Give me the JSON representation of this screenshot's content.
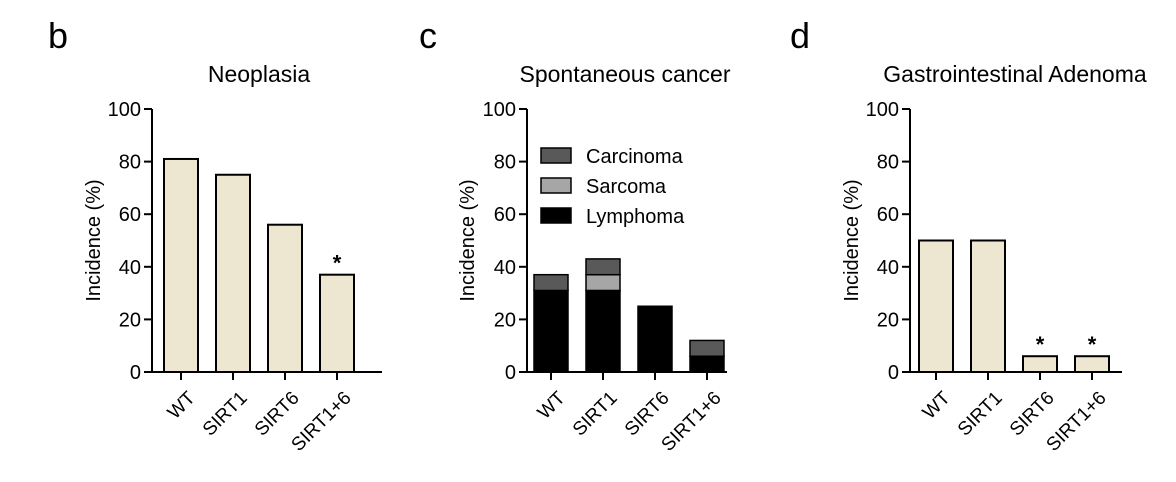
{
  "chart_data": [
    {
      "panel": "b",
      "type": "bar",
      "title": "Neoplasia",
      "ylabel": "Incidence (%)",
      "xlabel": "",
      "ylim": [
        0,
        100
      ],
      "yticks": [
        "0",
        "20",
        "40",
        "60",
        "80",
        "100"
      ],
      "categories": [
        "WT",
        "SIRT1",
        "SIRT6",
        "SIRT1+6"
      ],
      "values": [
        81,
        75,
        56,
        37
      ],
      "annotations": [
        "",
        "",
        "",
        "*"
      ],
      "color": "#ede6d0"
    },
    {
      "panel": "c",
      "type": "bar",
      "stacked": true,
      "title": "Spontaneous cancer",
      "ylabel": "Incidence (%)",
      "xlabel": "",
      "ylim": [
        0,
        100
      ],
      "yticks": [
        "0",
        "20",
        "40",
        "60",
        "80",
        "100"
      ],
      "categories": [
        "WT",
        "SIRT1",
        "SIRT6",
        "SIRT1+6"
      ],
      "series": [
        {
          "name": "Lymphoma",
          "values": [
            31,
            31,
            25,
            6
          ],
          "color": "#000000"
        },
        {
          "name": "Sarcoma",
          "values": [
            0,
            6,
            0,
            0
          ],
          "color": "#a6a6a6"
        },
        {
          "name": "Carcinoma",
          "values": [
            6,
            6,
            0,
            6
          ],
          "color": "#595959"
        }
      ],
      "legend_order": [
        "Carcinoma",
        "Sarcoma",
        "Lymphoma"
      ],
      "legend_position": "top-left"
    },
    {
      "panel": "d",
      "type": "bar",
      "title": "Gastrointestinal Adenoma",
      "ylabel": "Incidence (%)",
      "xlabel": "",
      "ylim": [
        0,
        100
      ],
      "yticks": [
        "0",
        "20",
        "40",
        "60",
        "80",
        "100"
      ],
      "categories": [
        "WT",
        "SIRT1",
        "SIRT6",
        "SIRT1+6"
      ],
      "values": [
        50,
        50,
        6,
        6
      ],
      "annotations": [
        "",
        "",
        "*",
        "*"
      ],
      "color": "#ede6d0"
    }
  ]
}
